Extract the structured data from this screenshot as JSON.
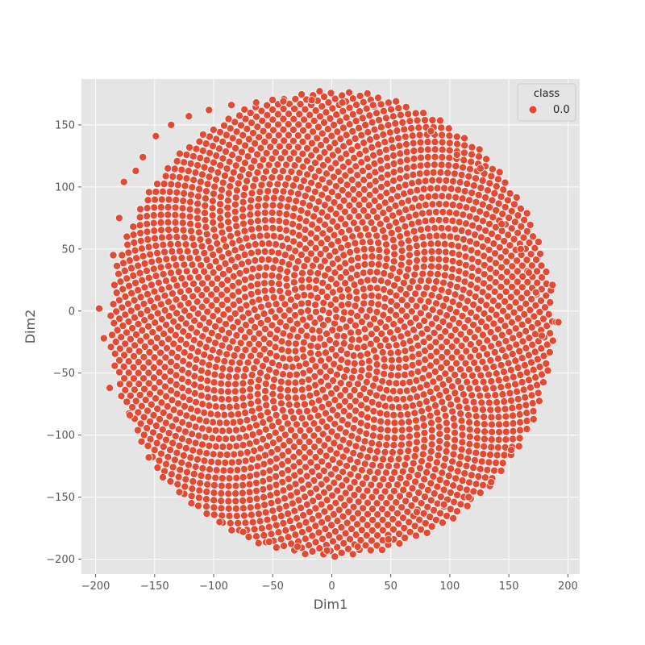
{
  "chart_data": {
    "type": "scatter",
    "title": "",
    "xlabel": "Dim1",
    "ylabel": "Dim2",
    "xlim": [
      -212,
      210
    ],
    "ylim": [
      -212,
      187
    ],
    "xticks": [
      -200,
      -150,
      -100,
      -50,
      0,
      50,
      100,
      150,
      200
    ],
    "yticks": [
      -200,
      -150,
      -100,
      -50,
      0,
      50,
      100,
      150
    ],
    "grid": true,
    "legend": {
      "title": "class",
      "placement": "top-right",
      "entries": [
        "0.0"
      ]
    },
    "series": [
      {
        "name": "0.0",
        "color": "#e24a33",
        "point_count": 3000,
        "distribution": "disc",
        "center": [
          0,
          -10
        ],
        "radius": 188,
        "x": [
          -197,
          -193,
          -188,
          -185,
          -180,
          -176,
          -171,
          -166,
          -160,
          -155,
          -149,
          -143,
          -136,
          -129,
          -121,
          -113,
          -104,
          -95,
          -85,
          -75,
          -64,
          -53,
          -41,
          -29,
          -17,
          -4,
          9,
          22,
          35,
          48,
          60,
          72,
          84,
          95,
          106,
          116,
          126,
          135,
          144,
          152,
          160,
          167,
          173,
          178,
          183,
          187,
          190,
          192
        ],
        "y": [
          2,
          -22,
          -62,
          45,
          75,
          104,
          -84,
          113,
          124,
          -118,
          141,
          -134,
          150,
          -146,
          157,
          -157,
          162,
          -170,
          166,
          -178,
          168,
          -186,
          169,
          -190,
          170,
          -193,
          168,
          -190,
          166,
          -184,
          152,
          -162,
          145,
          -156,
          126,
          -150,
          115,
          -138,
          70,
          -112,
          50,
          31,
          15,
          -20,
          -48,
          21,
          -9,
          -9
        ]
      }
    ]
  }
}
